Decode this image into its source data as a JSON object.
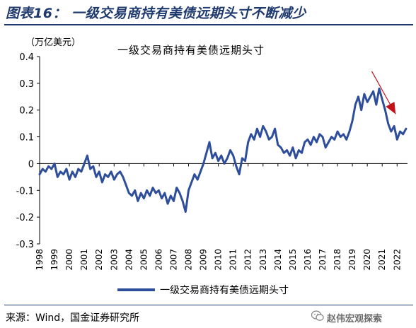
{
  "figure": {
    "title": "图表16：  一级交易商持有美债远期头寸不断减少",
    "unit": "（万亿美元）",
    "source": "来源：Wind，国金证券研究所",
    "watermark": "赵伟宏观探索"
  },
  "colors": {
    "series": "#2e4d9b",
    "arrow": "#c0141a",
    "title": "#1f3a6e"
  },
  "chart_data": {
    "type": "line",
    "title": "一级交易商持有美债远期头寸",
    "ylim": [
      -0.3,
      0.4
    ],
    "yticks": [
      "0.4",
      "0.3",
      "0.2",
      "0.1",
      "0",
      "-0.1",
      "-0.2",
      "-0.3"
    ],
    "ytick_values": [
      0.4,
      0.3,
      0.2,
      0.1,
      0,
      -0.1,
      -0.2,
      -0.3
    ],
    "xlim": [
      1998,
      2022.7
    ],
    "xticks": [
      "1998",
      "1999",
      "2000",
      "2001",
      "2002",
      "2003",
      "2004",
      "2005",
      "2006",
      "2007",
      "2008",
      "2009",
      "2010",
      "2011",
      "2012",
      "2013",
      "2014",
      "2015",
      "2016",
      "2017",
      "2018",
      "2019",
      "2020",
      "2021",
      "2022"
    ],
    "grid": false,
    "legend": "bottom",
    "series": [
      {
        "name": "一级交易商持有美债远期头寸",
        "x": [
          1998.0,
          1998.2,
          1998.4,
          1998.6,
          1998.8,
          1999.0,
          1999.2,
          1999.4,
          1999.6,
          1999.8,
          2000.0,
          2000.2,
          2000.4,
          2000.6,
          2000.8,
          2001.0,
          2001.2,
          2001.4,
          2001.6,
          2001.8,
          2002.0,
          2002.2,
          2002.4,
          2002.6,
          2002.8,
          2003.0,
          2003.2,
          2003.4,
          2003.6,
          2003.8,
          2004.0,
          2004.2,
          2004.4,
          2004.6,
          2004.8,
          2005.0,
          2005.2,
          2005.4,
          2005.6,
          2005.8,
          2006.0,
          2006.2,
          2006.4,
          2006.6,
          2006.8,
          2007.0,
          2007.2,
          2007.4,
          2007.6,
          2007.8,
          2008.0,
          2008.2,
          2008.4,
          2008.6,
          2008.8,
          2009.0,
          2009.2,
          2009.4,
          2009.6,
          2009.8,
          2010.0,
          2010.2,
          2010.4,
          2010.6,
          2010.8,
          2011.0,
          2011.2,
          2011.4,
          2011.6,
          2011.8,
          2012.0,
          2012.2,
          2012.4,
          2012.6,
          2012.8,
          2013.0,
          2013.2,
          2013.4,
          2013.6,
          2013.8,
          2014.0,
          2014.2,
          2014.4,
          2014.6,
          2014.8,
          2015.0,
          2015.2,
          2015.4,
          2015.6,
          2015.8,
          2016.0,
          2016.2,
          2016.4,
          2016.6,
          2016.8,
          2017.0,
          2017.2,
          2017.4,
          2017.6,
          2017.8,
          2018.0,
          2018.2,
          2018.4,
          2018.6,
          2018.8,
          2019.0,
          2019.2,
          2019.4,
          2019.6,
          2019.8,
          2020.0,
          2020.2,
          2020.4,
          2020.6,
          2020.8,
          2021.0,
          2021.2,
          2021.4,
          2021.6,
          2021.8,
          2022.0,
          2022.2,
          2022.4,
          2022.6
        ],
        "values": [
          -0.04,
          -0.02,
          -0.03,
          -0.01,
          -0.02,
          0.0,
          -0.05,
          -0.03,
          -0.04,
          -0.02,
          -0.06,
          -0.03,
          -0.05,
          -0.02,
          -0.03,
          0.0,
          0.03,
          -0.02,
          -0.01,
          -0.05,
          -0.03,
          -0.07,
          -0.04,
          -0.05,
          -0.03,
          -0.06,
          -0.04,
          -0.03,
          -0.05,
          -0.08,
          -0.11,
          -0.12,
          -0.1,
          -0.14,
          -0.11,
          -0.13,
          -0.1,
          -0.12,
          -0.09,
          -0.11,
          -0.1,
          -0.13,
          -0.11,
          -0.15,
          -0.12,
          -0.14,
          -0.09,
          -0.11,
          -0.14,
          -0.18,
          -0.1,
          -0.07,
          -0.04,
          -0.06,
          -0.03,
          0.0,
          0.04,
          0.08,
          0.02,
          0.04,
          0.01,
          0.03,
          0.0,
          0.02,
          0.05,
          0.03,
          -0.01,
          -0.04,
          0.02,
          0.01,
          0.08,
          0.11,
          0.09,
          0.13,
          0.1,
          0.14,
          0.12,
          0.09,
          0.1,
          0.13,
          0.07,
          0.06,
          0.04,
          0.05,
          0.03,
          0.06,
          0.02,
          0.05,
          0.04,
          0.08,
          0.09,
          0.07,
          0.1,
          0.08,
          0.11,
          0.1,
          0.06,
          0.08,
          0.1,
          0.09,
          0.12,
          0.1,
          0.11,
          0.09,
          0.12,
          0.16,
          0.22,
          0.25,
          0.2,
          0.26,
          0.23,
          0.25,
          0.27,
          0.22,
          0.28,
          0.24,
          0.2,
          0.15,
          0.12,
          0.14,
          0.09,
          0.12,
          0.11,
          0.13
        ]
      }
    ],
    "annotation": "downward-arrow"
  }
}
